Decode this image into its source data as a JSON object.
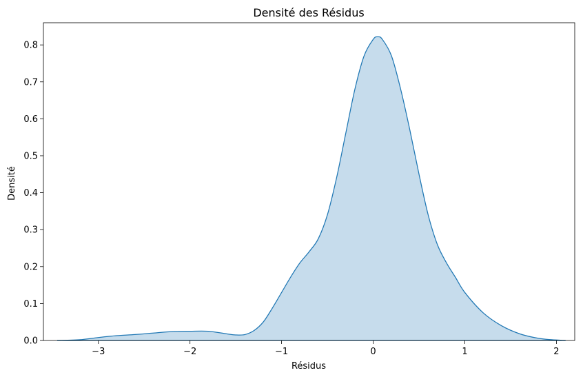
{
  "chart_data": {
    "type": "area",
    "title": "Densité des Résidus",
    "xlabel": "Résidus",
    "ylabel": "Densité",
    "xlim": [
      -3.6,
      2.2
    ],
    "ylim": [
      0,
      0.86
    ],
    "xticks": [
      -3,
      -2,
      -1,
      0,
      1,
      2
    ],
    "xtick_labels": [
      "−3",
      "−2",
      "−1",
      "0",
      "1",
      "2"
    ],
    "yticks": [
      0.0,
      0.1,
      0.2,
      0.3,
      0.4,
      0.5,
      0.6,
      0.7,
      0.8
    ],
    "ytick_labels": [
      "0.0",
      "0.1",
      "0.2",
      "0.3",
      "0.4",
      "0.5",
      "0.6",
      "0.7",
      "0.8"
    ],
    "grid": false,
    "legend": "none",
    "colors": {
      "line": "#1f77b4",
      "fill": "#c6dcec"
    },
    "series": [
      {
        "x": [
          -3.45,
          -3.2,
          -3.0,
          -2.8,
          -2.6,
          -2.4,
          -2.2,
          -2.0,
          -1.8,
          -1.6,
          -1.5,
          -1.4,
          -1.3,
          -1.2,
          -1.1,
          -1.0,
          -0.9,
          -0.8,
          -0.7,
          -0.6,
          -0.5,
          -0.4,
          -0.3,
          -0.2,
          -0.1,
          0.0,
          0.05,
          0.1,
          0.2,
          0.3,
          0.4,
          0.5,
          0.6,
          0.7,
          0.8,
          0.9,
          1.0,
          1.2,
          1.4,
          1.6,
          1.8,
          1.95,
          2.1
        ],
        "y": [
          0.0,
          0.002,
          0.008,
          0.013,
          0.016,
          0.02,
          0.024,
          0.025,
          0.025,
          0.018,
          0.015,
          0.016,
          0.027,
          0.05,
          0.088,
          0.13,
          0.172,
          0.21,
          0.24,
          0.275,
          0.34,
          0.44,
          0.56,
          0.68,
          0.77,
          0.815,
          0.822,
          0.815,
          0.77,
          0.68,
          0.57,
          0.45,
          0.34,
          0.26,
          0.21,
          0.17,
          0.13,
          0.075,
          0.04,
          0.018,
          0.006,
          0.002,
          0.0
        ]
      }
    ]
  }
}
